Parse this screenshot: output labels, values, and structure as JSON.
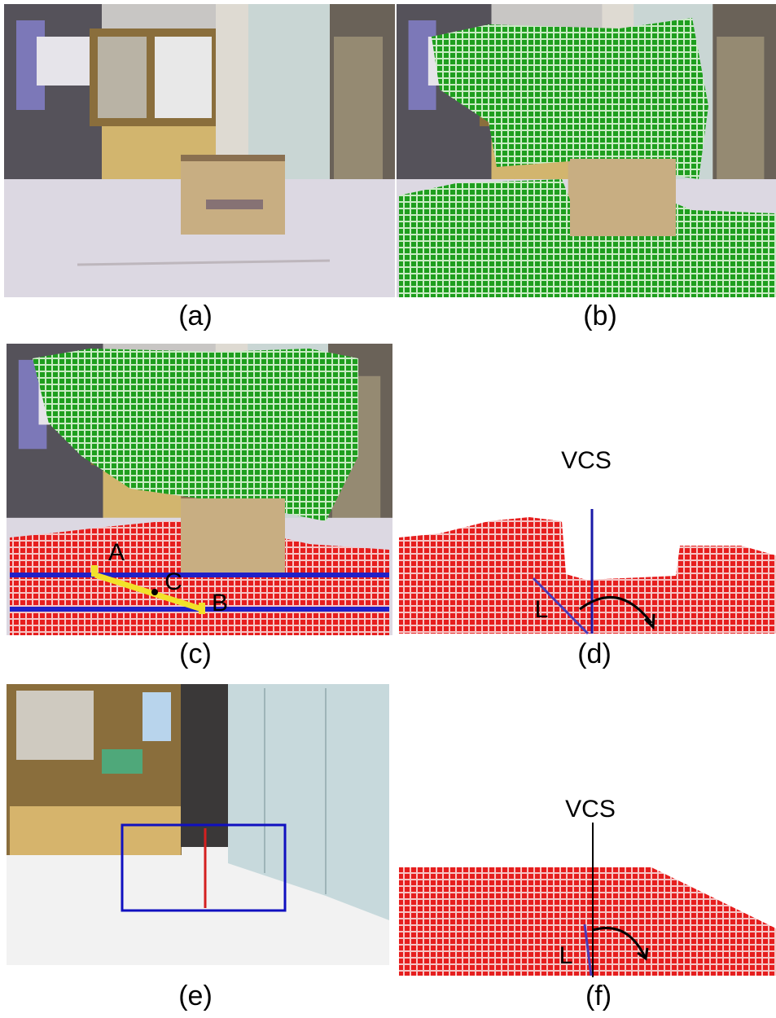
{
  "panels": [
    {
      "label": "(a)"
    },
    {
      "label": "(b)"
    },
    {
      "label": "(c)",
      "annotations": [
        "A",
        "C",
        "B"
      ]
    },
    {
      "label": "(d)",
      "annotations": [
        "VCS",
        "L"
      ]
    },
    {
      "label": "(e)"
    },
    {
      "label": "(f)",
      "annotations": [
        "VCS",
        "L"
      ]
    }
  ]
}
